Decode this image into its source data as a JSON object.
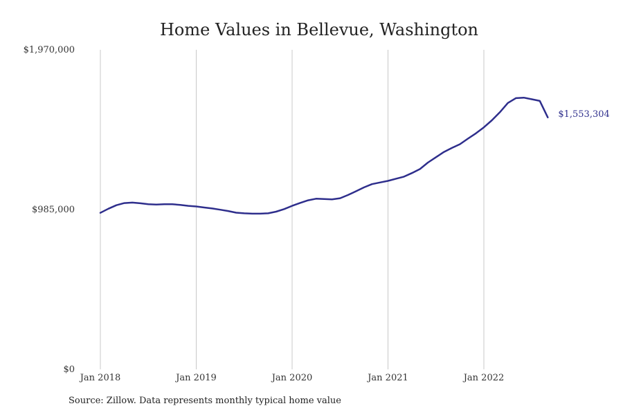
{
  "chart_data": {
    "type": "line",
    "title": "Home Values in Bellevue, Washington",
    "xlabel": "",
    "ylabel": "",
    "ylim": [
      0,
      1970000
    ],
    "xlim": [
      "2018-01",
      "2022-09"
    ],
    "grid": "vertical",
    "y_ticks": [
      {
        "value": 0,
        "label": "$0"
      },
      {
        "value": 985000,
        "label": "$985,000"
      },
      {
        "value": 1970000,
        "label": "$1,970,000"
      }
    ],
    "x_ticks": [
      {
        "value": "2018-01",
        "label": "Jan 2018"
      },
      {
        "value": "2019-01",
        "label": "Jan 2019"
      },
      {
        "value": "2020-01",
        "label": "Jan 2020"
      },
      {
        "value": "2021-01",
        "label": "Jan 2021"
      },
      {
        "value": "2022-01",
        "label": "Jan 2022"
      }
    ],
    "series": [
      {
        "name": "",
        "color": "#2e2e8c",
        "last_value_label": "$1,553,304",
        "points": [
          [
            "2018-01",
            965000
          ],
          [
            "2018-02",
            990000
          ],
          [
            "2018-03",
            1012000
          ],
          [
            "2018-04",
            1025000
          ],
          [
            "2018-05",
            1028000
          ],
          [
            "2018-06",
            1024000
          ],
          [
            "2018-07",
            1018000
          ],
          [
            "2018-08",
            1016000
          ],
          [
            "2018-09",
            1018000
          ],
          [
            "2018-10",
            1018000
          ],
          [
            "2018-11",
            1014000
          ],
          [
            "2018-12",
            1008000
          ],
          [
            "2019-01",
            1004000
          ],
          [
            "2019-02",
            998000
          ],
          [
            "2019-03",
            992000
          ],
          [
            "2019-04",
            984000
          ],
          [
            "2019-05",
            976000
          ],
          [
            "2019-06",
            966000
          ],
          [
            "2019-07",
            962000
          ],
          [
            "2019-08",
            960000
          ],
          [
            "2019-09",
            960000
          ],
          [
            "2019-10",
            962000
          ],
          [
            "2019-11",
            972000
          ],
          [
            "2019-12",
            988000
          ],
          [
            "2020-01",
            1008000
          ],
          [
            "2020-02",
            1026000
          ],
          [
            "2020-03",
            1042000
          ],
          [
            "2020-04",
            1052000
          ],
          [
            "2020-05",
            1050000
          ],
          [
            "2020-06",
            1048000
          ],
          [
            "2020-07",
            1055000
          ],
          [
            "2020-08",
            1075000
          ],
          [
            "2020-09",
            1098000
          ],
          [
            "2020-10",
            1122000
          ],
          [
            "2020-11",
            1142000
          ],
          [
            "2020-12",
            1152000
          ],
          [
            "2021-01",
            1162000
          ],
          [
            "2021-02",
            1175000
          ],
          [
            "2021-03",
            1188000
          ],
          [
            "2021-04",
            1210000
          ],
          [
            "2021-05",
            1235000
          ],
          [
            "2021-06",
            1275000
          ],
          [
            "2021-07",
            1308000
          ],
          [
            "2021-08",
            1340000
          ],
          [
            "2021-09",
            1365000
          ],
          [
            "2021-10",
            1388000
          ],
          [
            "2021-11",
            1422000
          ],
          [
            "2021-12",
            1455000
          ],
          [
            "2022-01",
            1492000
          ],
          [
            "2022-02",
            1535000
          ],
          [
            "2022-03",
            1585000
          ],
          [
            "2022-04",
            1642000
          ],
          [
            "2022-05",
            1672000
          ],
          [
            "2022-06",
            1675000
          ],
          [
            "2022-07",
            1665000
          ],
          [
            "2022-08",
            1655000
          ],
          [
            "2022-09",
            1553304
          ]
        ]
      }
    ]
  },
  "source_text": "Source: Zillow. Data represents monthly typical home value"
}
